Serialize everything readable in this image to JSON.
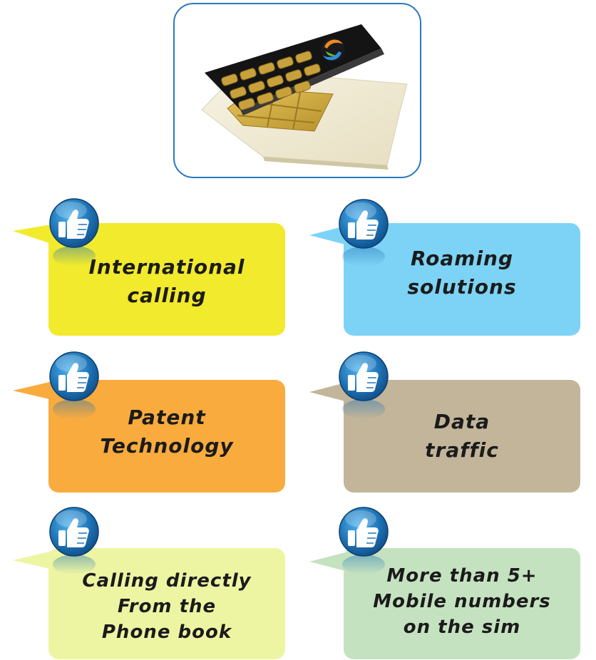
{
  "colors": {
    "frame_border": "#2a78c0",
    "yellow": "#f2ea2c",
    "light_blue": "#7dd3f5",
    "orange": "#f9ab3e",
    "taupe": "#c2b59a",
    "pale_yellow": "#eef5a2",
    "pale_green": "#c5e2c0",
    "thumb_badge": "#1f74b6"
  },
  "sim_image": {
    "icon": "sim-card-icon"
  },
  "features": [
    {
      "label": "International\ncalling",
      "color": "yellow",
      "icon": "thumbs-up-icon"
    },
    {
      "label": "Roaming\nsolutions",
      "color": "light_blue",
      "icon": "thumbs-up-icon"
    },
    {
      "label": "Patent\nTechnology",
      "color": "orange",
      "icon": "thumbs-up-icon"
    },
    {
      "label": "Data\ntraffic",
      "color": "taupe",
      "icon": "thumbs-up-icon"
    },
    {
      "label": "Calling directly\nFrom the\nPhone book",
      "color": "pale_yellow",
      "icon": "thumbs-up-icon"
    },
    {
      "label": "More than 5+\nMobile numbers\non the sim",
      "color": "pale_green",
      "icon": "thumbs-up-icon"
    }
  ]
}
